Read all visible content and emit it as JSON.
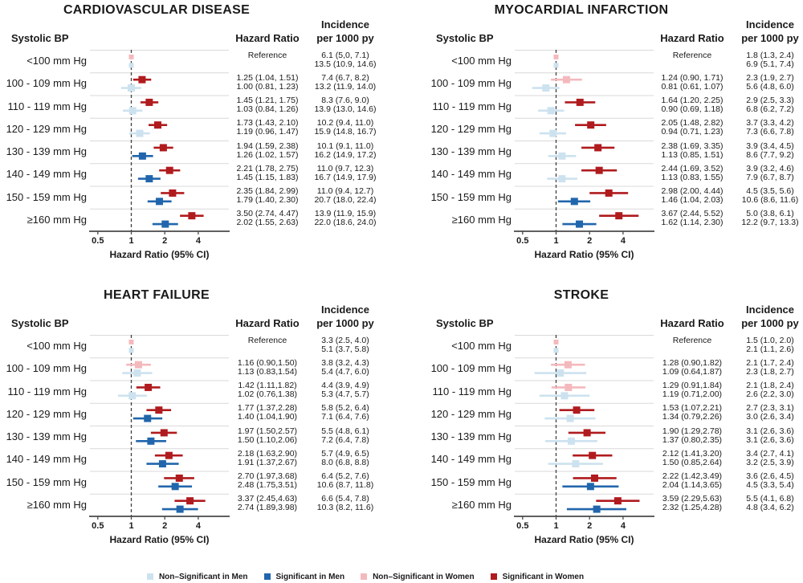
{
  "figure": {
    "background": "#ffffff",
    "columns": {
      "bp": "Systolic BP",
      "hr": "Hazard Ratio",
      "inc1": "Incidence",
      "inc2": "per 1000 py"
    },
    "xaxis": {
      "label": "Hazard Ratio (95% CI)",
      "ticks": [
        "0.5",
        "1",
        "2",
        "4"
      ],
      "scale": "log2",
      "reference_line": 1
    }
  },
  "colors": {
    "sig_men": "#2166ac",
    "nonsig_men": "#cde2ef",
    "sig_women": "#b01b1e",
    "nonsig_women": "#f4b9bd",
    "axis": "#4a4a4a",
    "grid": "#d9d9d9",
    "dashed": "#3f3f3f",
    "text": "#1a1a1a"
  },
  "legend": {
    "items": [
      {
        "key": "nonsig-men",
        "label": "Non–Significant in Men",
        "color": "#cde2ef"
      },
      {
        "key": "sig-men",
        "label": "Significant in Men",
        "color": "#2166ac"
      },
      {
        "key": "nonsig-women",
        "label": "Non–Significant in Women",
        "color": "#f4b9bd"
      },
      {
        "key": "sig-women",
        "label": "Significant in Women",
        "color": "#b01b1e"
      }
    ]
  },
  "chart_data": [
    {
      "type": "forest",
      "title": "CARDIOVASCULAR DISEASE",
      "position": "top-left",
      "xlabel": "Hazard Ratio (95% CI)",
      "xticks": [
        0.5,
        1,
        2,
        4
      ],
      "xscale": "log",
      "xlim": [
        0.42,
        7
      ],
      "reference_line": 1,
      "rows": [
        {
          "label": "<100 mm Hg",
          "reference": true,
          "hr_text": [
            "Reference"
          ],
          "incidence": [
            "6.1 (5,0, 7.1)",
            "13.5 (10.9, 14.6)"
          ],
          "women": {
            "est": 1.0,
            "lo": 1.0,
            "hi": 1.0,
            "significant": false
          },
          "men": {
            "est": 1.0,
            "lo": 1.0,
            "hi": 1.0,
            "significant": false
          }
        },
        {
          "label": "100 - 109 mm Hg",
          "hr_text": [
            "1.25 (1.04, 1.51)",
            "1.00 (0.81, 1.23)"
          ],
          "incidence": [
            "7.4 (6.7, 8.2)",
            "13.2 (11.9, 14.0)"
          ],
          "women": {
            "est": 1.25,
            "lo": 1.04,
            "hi": 1.51,
            "significant": true
          },
          "men": {
            "est": 1.0,
            "lo": 0.81,
            "hi": 1.23,
            "significant": false
          }
        },
        {
          "label": "110 - 119 mm Hg",
          "hr_text": [
            "1.45 (1.21, 1.75)",
            "1.03 (0.84, 1.26)"
          ],
          "incidence": [
            "8.3 (7.6, 9.0)",
            "13.9 (13.0, 14.6)"
          ],
          "women": {
            "est": 1.45,
            "lo": 1.21,
            "hi": 1.75,
            "significant": true
          },
          "men": {
            "est": 1.03,
            "lo": 0.84,
            "hi": 1.26,
            "significant": false
          }
        },
        {
          "label": "120 - 129 mm Hg",
          "hr_text": [
            "1.73 (1.43, 2.10)",
            "1.19 (0.96, 1.47)"
          ],
          "incidence": [
            "10.2 (9.4, 11.0)",
            "15.9 (14.8, 16.7)"
          ],
          "women": {
            "est": 1.73,
            "lo": 1.43,
            "hi": 2.1,
            "significant": true
          },
          "men": {
            "est": 1.19,
            "lo": 0.96,
            "hi": 1.47,
            "significant": false
          }
        },
        {
          "label": "130 - 139 mm Hg",
          "hr_text": [
            "1.94 (1.59, 2.38)",
            "1.26 (1.02, 1.57)"
          ],
          "incidence": [
            "10.1 (9.1, 11.0)",
            "16.2 (14.9, 17.2)"
          ],
          "women": {
            "est": 1.94,
            "lo": 1.59,
            "hi": 2.38,
            "significant": true
          },
          "men": {
            "est": 1.26,
            "lo": 1.02,
            "hi": 1.57,
            "significant": true
          }
        },
        {
          "label": "140 - 149 mm Hg",
          "hr_text": [
            "2.21 (1.78, 2.75)",
            "1.45 (1.15, 1.83)"
          ],
          "incidence": [
            "11.0 (9.7, 12.3)",
            "16.7 (14.9, 17.9)"
          ],
          "women": {
            "est": 2.21,
            "lo": 1.78,
            "hi": 2.75,
            "significant": true
          },
          "men": {
            "est": 1.45,
            "lo": 1.15,
            "hi": 1.83,
            "significant": true
          }
        },
        {
          "label": "150 - 159 mm Hg",
          "hr_text": [
            "2.35 (1.84, 2.99)",
            "1.79 (1.40, 2.30)"
          ],
          "incidence": [
            "11.0 (9.4, 12.7)",
            "20.7 (18.0, 22.4)"
          ],
          "women": {
            "est": 2.35,
            "lo": 1.84,
            "hi": 2.99,
            "significant": true
          },
          "men": {
            "est": 1.79,
            "lo": 1.4,
            "hi": 2.3,
            "significant": true
          }
        },
        {
          "label": "≥160 mm Hg",
          "hr_text": [
            "3.50 (2.74, 4.47)",
            "2.02 (1.55, 2.63)"
          ],
          "incidence": [
            "13.9 (11.9, 15.9)",
            "22.0 (18.6, 24.0)"
          ],
          "women": {
            "est": 3.5,
            "lo": 2.74,
            "hi": 4.47,
            "significant": true
          },
          "men": {
            "est": 2.02,
            "lo": 1.55,
            "hi": 2.63,
            "significant": true
          }
        }
      ]
    },
    {
      "type": "forest",
      "title": "MYOCARDIAL INFARCTION",
      "position": "top-right",
      "xlabel": "Hazard Ratio (95% CI)",
      "xticks": [
        0.5,
        1,
        2,
        4
      ],
      "xscale": "log",
      "xlim": [
        0.42,
        7
      ],
      "reference_line": 1,
      "rows": [
        {
          "label": "<100 mm Hg",
          "reference": true,
          "hr_text": [
            "Reference"
          ],
          "incidence": [
            "1.8 (1.3, 2.4)",
            "6.9 (5.1, 7.4)"
          ],
          "women": {
            "est": 1.0,
            "lo": 1.0,
            "hi": 1.0,
            "significant": false
          },
          "men": {
            "est": 1.0,
            "lo": 1.0,
            "hi": 1.0,
            "significant": false
          }
        },
        {
          "label": "100 - 109 mm Hg",
          "hr_text": [
            "1.24 (0.90, 1.71)",
            "0.81 (0.61, 1.07)"
          ],
          "incidence": [
            "2.3 (1.9, 2.7)",
            "5.6 (4.8, 6.0)"
          ],
          "women": {
            "est": 1.24,
            "lo": 0.9,
            "hi": 1.71,
            "significant": false
          },
          "men": {
            "est": 0.81,
            "lo": 0.61,
            "hi": 1.07,
            "significant": false
          }
        },
        {
          "label": "110 - 119 mm Hg",
          "hr_text": [
            "1.64 (1.20, 2.25)",
            "0.90 (0.69, 1.18)"
          ],
          "incidence": [
            "2.9 (2.5, 3.3)",
            "6.8 (6.2, 7.2)"
          ],
          "women": {
            "est": 1.64,
            "lo": 1.2,
            "hi": 2.25,
            "significant": true
          },
          "men": {
            "est": 0.9,
            "lo": 0.69,
            "hi": 1.18,
            "significant": false
          }
        },
        {
          "label": "120 - 129 mm Hg",
          "hr_text": [
            "2.05 (1.48, 2.82)",
            "0.94 (0.71, 1.23)"
          ],
          "incidence": [
            "3.7 (3.3, 4.2)",
            "7.3 (6.6, 7.8)"
          ],
          "women": {
            "est": 2.05,
            "lo": 1.48,
            "hi": 2.82,
            "significant": true
          },
          "men": {
            "est": 0.94,
            "lo": 0.71,
            "hi": 1.23,
            "significant": false
          }
        },
        {
          "label": "130 - 139 mm Hg",
          "hr_text": [
            "2.38 (1.69, 3.35)",
            "1.13 (0.85, 1.51)"
          ],
          "incidence": [
            "3.9 (3.4, 4.5)",
            "8.6 (7.7, 9.2)"
          ],
          "women": {
            "est": 2.38,
            "lo": 1.69,
            "hi": 3.35,
            "significant": true
          },
          "men": {
            "est": 1.13,
            "lo": 0.85,
            "hi": 1.51,
            "significant": false
          }
        },
        {
          "label": "140 - 149 mm Hg",
          "hr_text": [
            "2.44 (1.69, 3.52)",
            "1.13 (0.83, 1.55)"
          ],
          "incidence": [
            "3.9 (3.2, 4.6)",
            "7.9 (6.7, 8.7)"
          ],
          "women": {
            "est": 2.44,
            "lo": 1.69,
            "hi": 3.52,
            "significant": true
          },
          "men": {
            "est": 1.13,
            "lo": 0.83,
            "hi": 1.55,
            "significant": false
          }
        },
        {
          "label": "150 - 159 mm Hg",
          "hr_text": [
            "2.98 (2.00, 4.44)",
            "1.46 (1.04, 2.03)"
          ],
          "incidence": [
            "4.5 (3.5, 5.6)",
            "10.6 (8.6, 11.6)"
          ],
          "women": {
            "est": 2.98,
            "lo": 2.0,
            "hi": 4.44,
            "significant": true
          },
          "men": {
            "est": 1.46,
            "lo": 1.04,
            "hi": 2.03,
            "significant": true
          }
        },
        {
          "label": "≥160 mm Hg",
          "hr_text": [
            "3.67 (2.44, 5.52)",
            "1.62 (1.14, 2.30)"
          ],
          "incidence": [
            "5.0 (3.8, 6.1)",
            "12.2 (9.7, 13.3)"
          ],
          "women": {
            "est": 3.67,
            "lo": 2.44,
            "hi": 5.52,
            "significant": true
          },
          "men": {
            "est": 1.62,
            "lo": 1.14,
            "hi": 2.3,
            "significant": true
          }
        }
      ]
    },
    {
      "type": "forest",
      "title": "HEART FAILURE",
      "position": "bottom-left",
      "xlabel": "Hazard Ratio (95% CI)",
      "xticks": [
        0.5,
        1,
        2,
        4
      ],
      "xscale": "log",
      "xlim": [
        0.42,
        7
      ],
      "reference_line": 1,
      "rows": [
        {
          "label": "<100 mm Hg",
          "reference": true,
          "hr_text": [
            "Reference"
          ],
          "incidence": [
            "3.3 (2.5, 4.0)",
            "5.1 (3.7, 5.8)"
          ],
          "women": {
            "est": 1.0,
            "lo": 1.0,
            "hi": 1.0,
            "significant": false
          },
          "men": {
            "est": 1.0,
            "lo": 1.0,
            "hi": 1.0,
            "significant": false
          }
        },
        {
          "label": "100 - 109 mm Hg",
          "hr_text": [
            "1.16 (0.90,1.50)",
            "1.13 (0.83,1.54)"
          ],
          "incidence": [
            "3.8 (3.2, 4.3)",
            "5.4 (4.7, 6.0)"
          ],
          "women": {
            "est": 1.16,
            "lo": 0.9,
            "hi": 1.5,
            "significant": false
          },
          "men": {
            "est": 1.13,
            "lo": 0.83,
            "hi": 1.54,
            "significant": false
          }
        },
        {
          "label": "110 - 119 mm Hg",
          "hr_text": [
            "1.42 (1.11,1.82)",
            "1.02 (0.76,1.38)"
          ],
          "incidence": [
            "4.4 (3.9, 4.9)",
            "5.3 (4.7, 5.7)"
          ],
          "women": {
            "est": 1.42,
            "lo": 1.11,
            "hi": 1.82,
            "significant": true
          },
          "men": {
            "est": 1.02,
            "lo": 0.76,
            "hi": 1.38,
            "significant": false
          }
        },
        {
          "label": "120 - 129 mm Hg",
          "hr_text": [
            "1.77 (1.37,2.28)",
            "1.40 (1.04,1.90)"
          ],
          "incidence": [
            "5.8 (5.2, 6.4)",
            "7.1 (6.4, 7.6)"
          ],
          "women": {
            "est": 1.77,
            "lo": 1.37,
            "hi": 2.28,
            "significant": true
          },
          "men": {
            "est": 1.4,
            "lo": 1.04,
            "hi": 1.9,
            "significant": true
          }
        },
        {
          "label": "130 - 139 mm Hg",
          "hr_text": [
            "1.97 (1.50,2.57)",
            "1.50 (1.10,2.06)"
          ],
          "incidence": [
            "5.5 (4.8, 6.1)",
            "7.2 (6.4, 7.8)"
          ],
          "women": {
            "est": 1.97,
            "lo": 1.5,
            "hi": 2.57,
            "significant": true
          },
          "men": {
            "est": 1.5,
            "lo": 1.1,
            "hi": 2.06,
            "significant": true
          }
        },
        {
          "label": "140 - 149 mm Hg",
          "hr_text": [
            "2.18 (1.63,2.90)",
            "1.91 (1.37,2.67)"
          ],
          "incidence": [
            "5.7 (4.9, 6.5)",
            "8.0 (6.8, 8.8)"
          ],
          "women": {
            "est": 2.18,
            "lo": 1.63,
            "hi": 2.9,
            "significant": true
          },
          "men": {
            "est": 1.91,
            "lo": 1.37,
            "hi": 2.67,
            "significant": true
          }
        },
        {
          "label": "150 - 159 mm Hg",
          "hr_text": [
            "2.70 (1.97,3.68)",
            "2.48 (1.75,3.51)"
          ],
          "incidence": [
            "6.4 (5.2, 7.6)",
            "10.6 (8.7, 11.8)"
          ],
          "women": {
            "est": 2.7,
            "lo": 1.97,
            "hi": 3.68,
            "significant": true
          },
          "men": {
            "est": 2.48,
            "lo": 1.75,
            "hi": 3.51,
            "significant": true
          }
        },
        {
          "label": "≥160 mm Hg",
          "hr_text": [
            "3.37 (2.45,4.63)",
            "2.74 (1.89,3.98)"
          ],
          "incidence": [
            "6.6 (5.4, 7.8)",
            "10.3 (8.2, 11.6)"
          ],
          "women": {
            "est": 3.37,
            "lo": 2.45,
            "hi": 4.63,
            "significant": true
          },
          "men": {
            "est": 2.74,
            "lo": 1.89,
            "hi": 3.98,
            "significant": true
          }
        }
      ]
    },
    {
      "type": "forest",
      "title": "STROKE",
      "position": "bottom-right",
      "xlabel": "Hazard Ratio (95% CI)",
      "xticks": [
        0.5,
        1,
        2,
        4
      ],
      "xscale": "log",
      "xlim": [
        0.42,
        7
      ],
      "reference_line": 1,
      "rows": [
        {
          "label": "<100 mm Hg",
          "reference": true,
          "hr_text": [
            "Reference"
          ],
          "incidence": [
            "1.5 (1.0, 2.0)",
            "2.1 (1.1, 2.6)"
          ],
          "women": {
            "est": 1.0,
            "lo": 1.0,
            "hi": 1.0,
            "significant": false
          },
          "men": {
            "est": 1.0,
            "lo": 1.0,
            "hi": 1.0,
            "significant": false
          }
        },
        {
          "label": "100 - 109 mm Hg",
          "hr_text": [
            "1.28 (0.90,1.82)",
            "1.09 (0.64,1.87)"
          ],
          "incidence": [
            "2.1 (1.7, 2.4)",
            "2.3 (1.8, 2.7)"
          ],
          "women": {
            "est": 1.28,
            "lo": 0.9,
            "hi": 1.82,
            "significant": false
          },
          "men": {
            "est": 1.09,
            "lo": 0.64,
            "hi": 1.87,
            "significant": false
          }
        },
        {
          "label": "110 - 119 mm Hg",
          "hr_text": [
            "1.29 (0.91,1.84)",
            "1.19 (0.71,2.00)"
          ],
          "incidence": [
            "2.1 (1.8, 2.4)",
            "2.6 (2.2, 3.0)"
          ],
          "women": {
            "est": 1.29,
            "lo": 0.91,
            "hi": 1.84,
            "significant": false
          },
          "men": {
            "est": 1.19,
            "lo": 0.71,
            "hi": 2.0,
            "significant": false
          }
        },
        {
          "label": "120 - 129 mm Hg",
          "hr_text": [
            "1.53 (1.07,2.21)",
            "1.34 (0.79,2.26)"
          ],
          "incidence": [
            "2.7 (2.3, 3.1)",
            "3.0 (2.6, 3.4)"
          ],
          "women": {
            "est": 1.53,
            "lo": 1.07,
            "hi": 2.21,
            "significant": true
          },
          "men": {
            "est": 1.34,
            "lo": 0.79,
            "hi": 2.26,
            "significant": false
          }
        },
        {
          "label": "130 - 139 mm Hg",
          "hr_text": [
            "1.90 (1.29,2.78)",
            "1.37 (0.80,2.35)"
          ],
          "incidence": [
            "3.1 (2.6, 3.6)",
            "3.1 (2.6, 3.6)"
          ],
          "women": {
            "est": 1.9,
            "lo": 1.29,
            "hi": 2.78,
            "significant": true
          },
          "men": {
            "est": 1.37,
            "lo": 0.8,
            "hi": 2.35,
            "significant": false
          }
        },
        {
          "label": "140 - 149 mm Hg",
          "hr_text": [
            "2.12 (1.41,3.20)",
            "1.50 (0.85,2.64)"
          ],
          "incidence": [
            "3.4 (2.7, 4.1)",
            "3.2 (2.5, 3.9)"
          ],
          "women": {
            "est": 2.12,
            "lo": 1.41,
            "hi": 3.2,
            "significant": true
          },
          "men": {
            "est": 1.5,
            "lo": 0.85,
            "hi": 2.64,
            "significant": false
          }
        },
        {
          "label": "150 - 159 mm Hg",
          "hr_text": [
            "2.22 (1.42,3.49)",
            "2.04 (1.14,3.65)"
          ],
          "incidence": [
            "3.6 (2.6, 4.5)",
            "4.5 (3.3, 5.4)"
          ],
          "women": {
            "est": 2.22,
            "lo": 1.42,
            "hi": 3.49,
            "significant": true
          },
          "men": {
            "est": 2.04,
            "lo": 1.14,
            "hi": 3.65,
            "significant": true
          }
        },
        {
          "label": "≥160 mm Hg",
          "hr_text": [
            "3.59 (2.29,5.63)",
            "2.32 (1.25,4.28)"
          ],
          "incidence": [
            "5.5 (4.1, 6.8)",
            "4.8 (3.4, 6.2)"
          ],
          "women": {
            "est": 3.59,
            "lo": 2.29,
            "hi": 5.63,
            "significant": true
          },
          "men": {
            "est": 2.32,
            "lo": 1.25,
            "hi": 4.28,
            "significant": true
          }
        }
      ]
    }
  ]
}
